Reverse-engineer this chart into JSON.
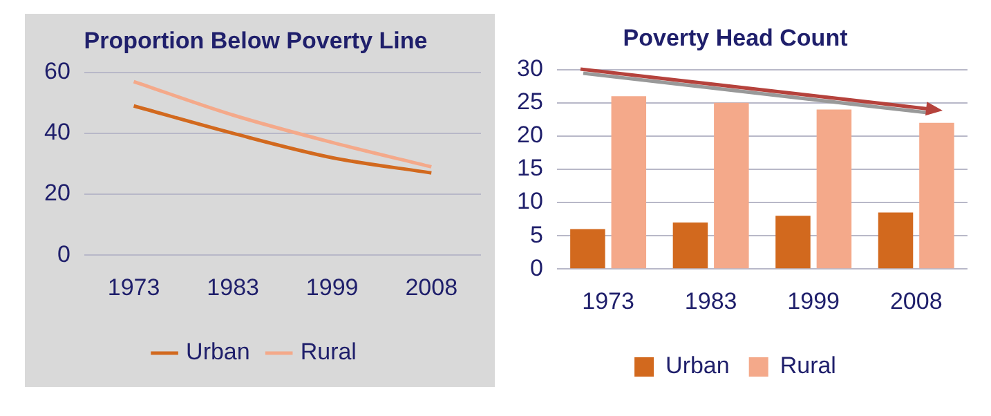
{
  "chart_data": [
    {
      "type": "line",
      "title": "Proportion Below Poverty Line",
      "categories": [
        "1973",
        "1983",
        "1999",
        "2008"
      ],
      "series": [
        {
          "name": "Urban",
          "color": "#d2691e",
          "values": [
            49,
            40,
            32,
            27
          ]
        },
        {
          "name": "Rural",
          "color": "#f4a98a",
          "values": [
            57,
            46,
            37,
            29
          ]
        }
      ],
      "ylim": [
        0,
        60
      ],
      "yticks": [
        0,
        20,
        40,
        60
      ],
      "grid": "y",
      "legend": "bottom",
      "marker": "none",
      "line_style": "solid"
    },
    {
      "type": "bar",
      "title": "Poverty Head Count",
      "categories": [
        "1973",
        "1983",
        "1999",
        "2008"
      ],
      "series": [
        {
          "name": "Urban",
          "color": "#d2691e",
          "values": [
            6,
            7,
            8,
            8.5
          ]
        },
        {
          "name": "Rural",
          "color": "#f4a98a",
          "values": [
            26,
            25,
            24,
            22
          ]
        }
      ],
      "ylim": [
        0,
        30
      ],
      "yticks": [
        0,
        5,
        10,
        15,
        20,
        25,
        30
      ],
      "grid": "y",
      "legend": "bottom"
    }
  ]
}
